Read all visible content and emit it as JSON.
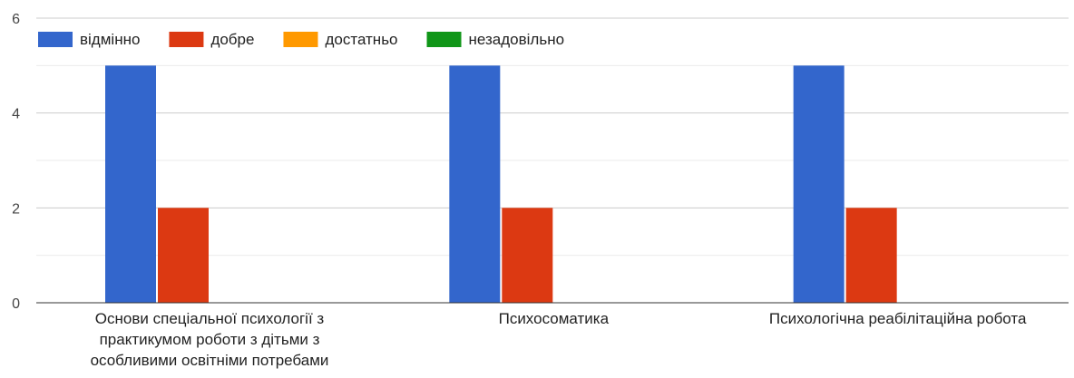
{
  "chart_data": {
    "type": "bar",
    "categories": [
      [
        "Основи спеціальної психології з",
        "практикумом роботи з дітьми з",
        "особливими освітніми потребами"
      ],
      [
        "Психосоматика"
      ],
      [
        "Психологічна реабілітаційна робота"
      ]
    ],
    "series": [
      {
        "name": "відмінно",
        "color": "#3366cc",
        "values": [
          5,
          5,
          5
        ]
      },
      {
        "name": "добре",
        "color": "#dc3912",
        "values": [
          2,
          2,
          2
        ]
      },
      {
        "name": "достатньо",
        "color": "#ff9900",
        "values": [
          0,
          0,
          0
        ]
      },
      {
        "name": "незадовільно",
        "color": "#109618",
        "values": [
          0,
          0,
          0
        ]
      }
    ],
    "yticks": [
      0,
      2,
      4,
      6
    ],
    "ylim": [
      0,
      6
    ],
    "grid": true,
    "legend_position": "top-left"
  }
}
